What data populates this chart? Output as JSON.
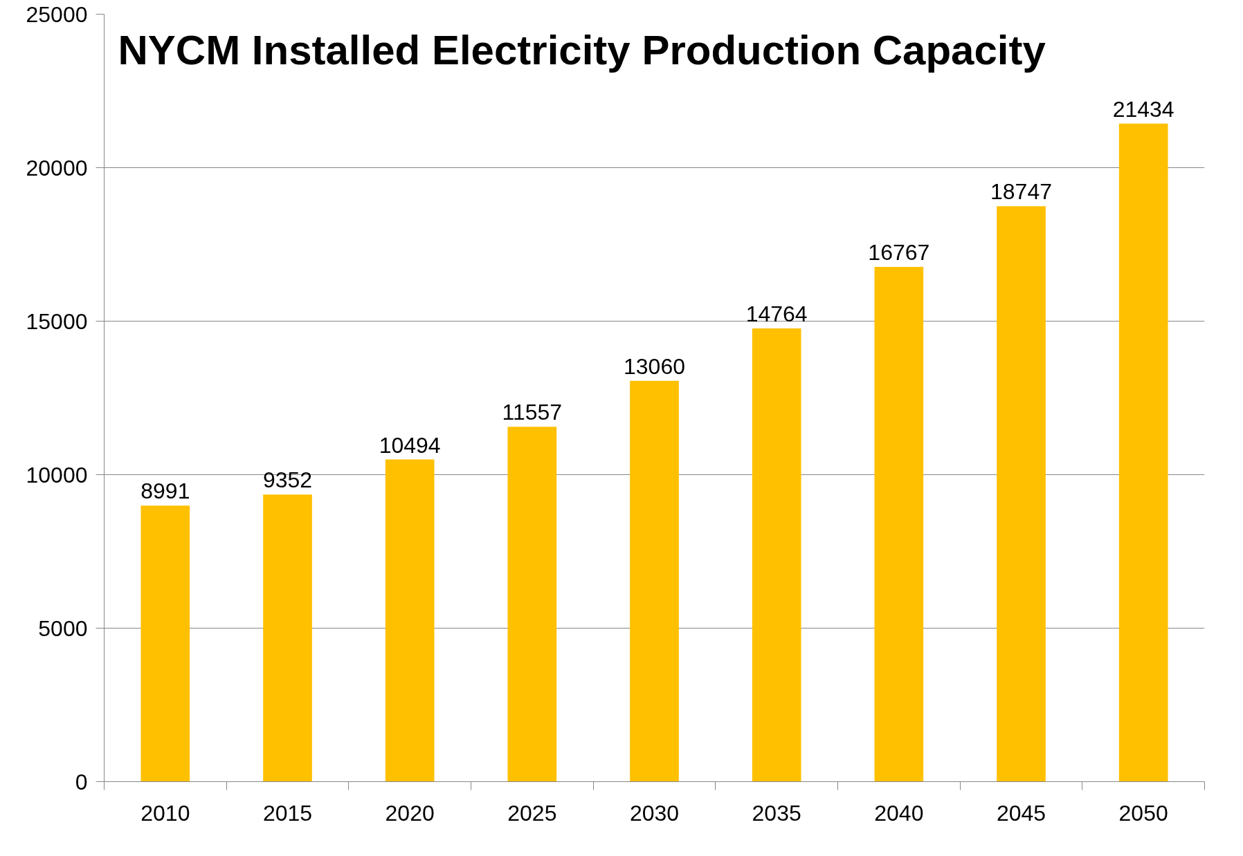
{
  "chart_data": {
    "type": "bar",
    "title": "NYCM Installed Electricity Production Capacity",
    "categories": [
      "2010",
      "2015",
      "2020",
      "2025",
      "2030",
      "2035",
      "2040",
      "2045",
      "2050"
    ],
    "values": [
      8991,
      9352,
      10494,
      11557,
      13060,
      14764,
      16767,
      18747,
      21434
    ],
    "color": "#ffc000",
    "ylim": [
      0,
      25000
    ],
    "yticks": [
      0,
      5000,
      10000,
      15000,
      20000,
      25000
    ],
    "grid": "y",
    "data_labels": true
  }
}
